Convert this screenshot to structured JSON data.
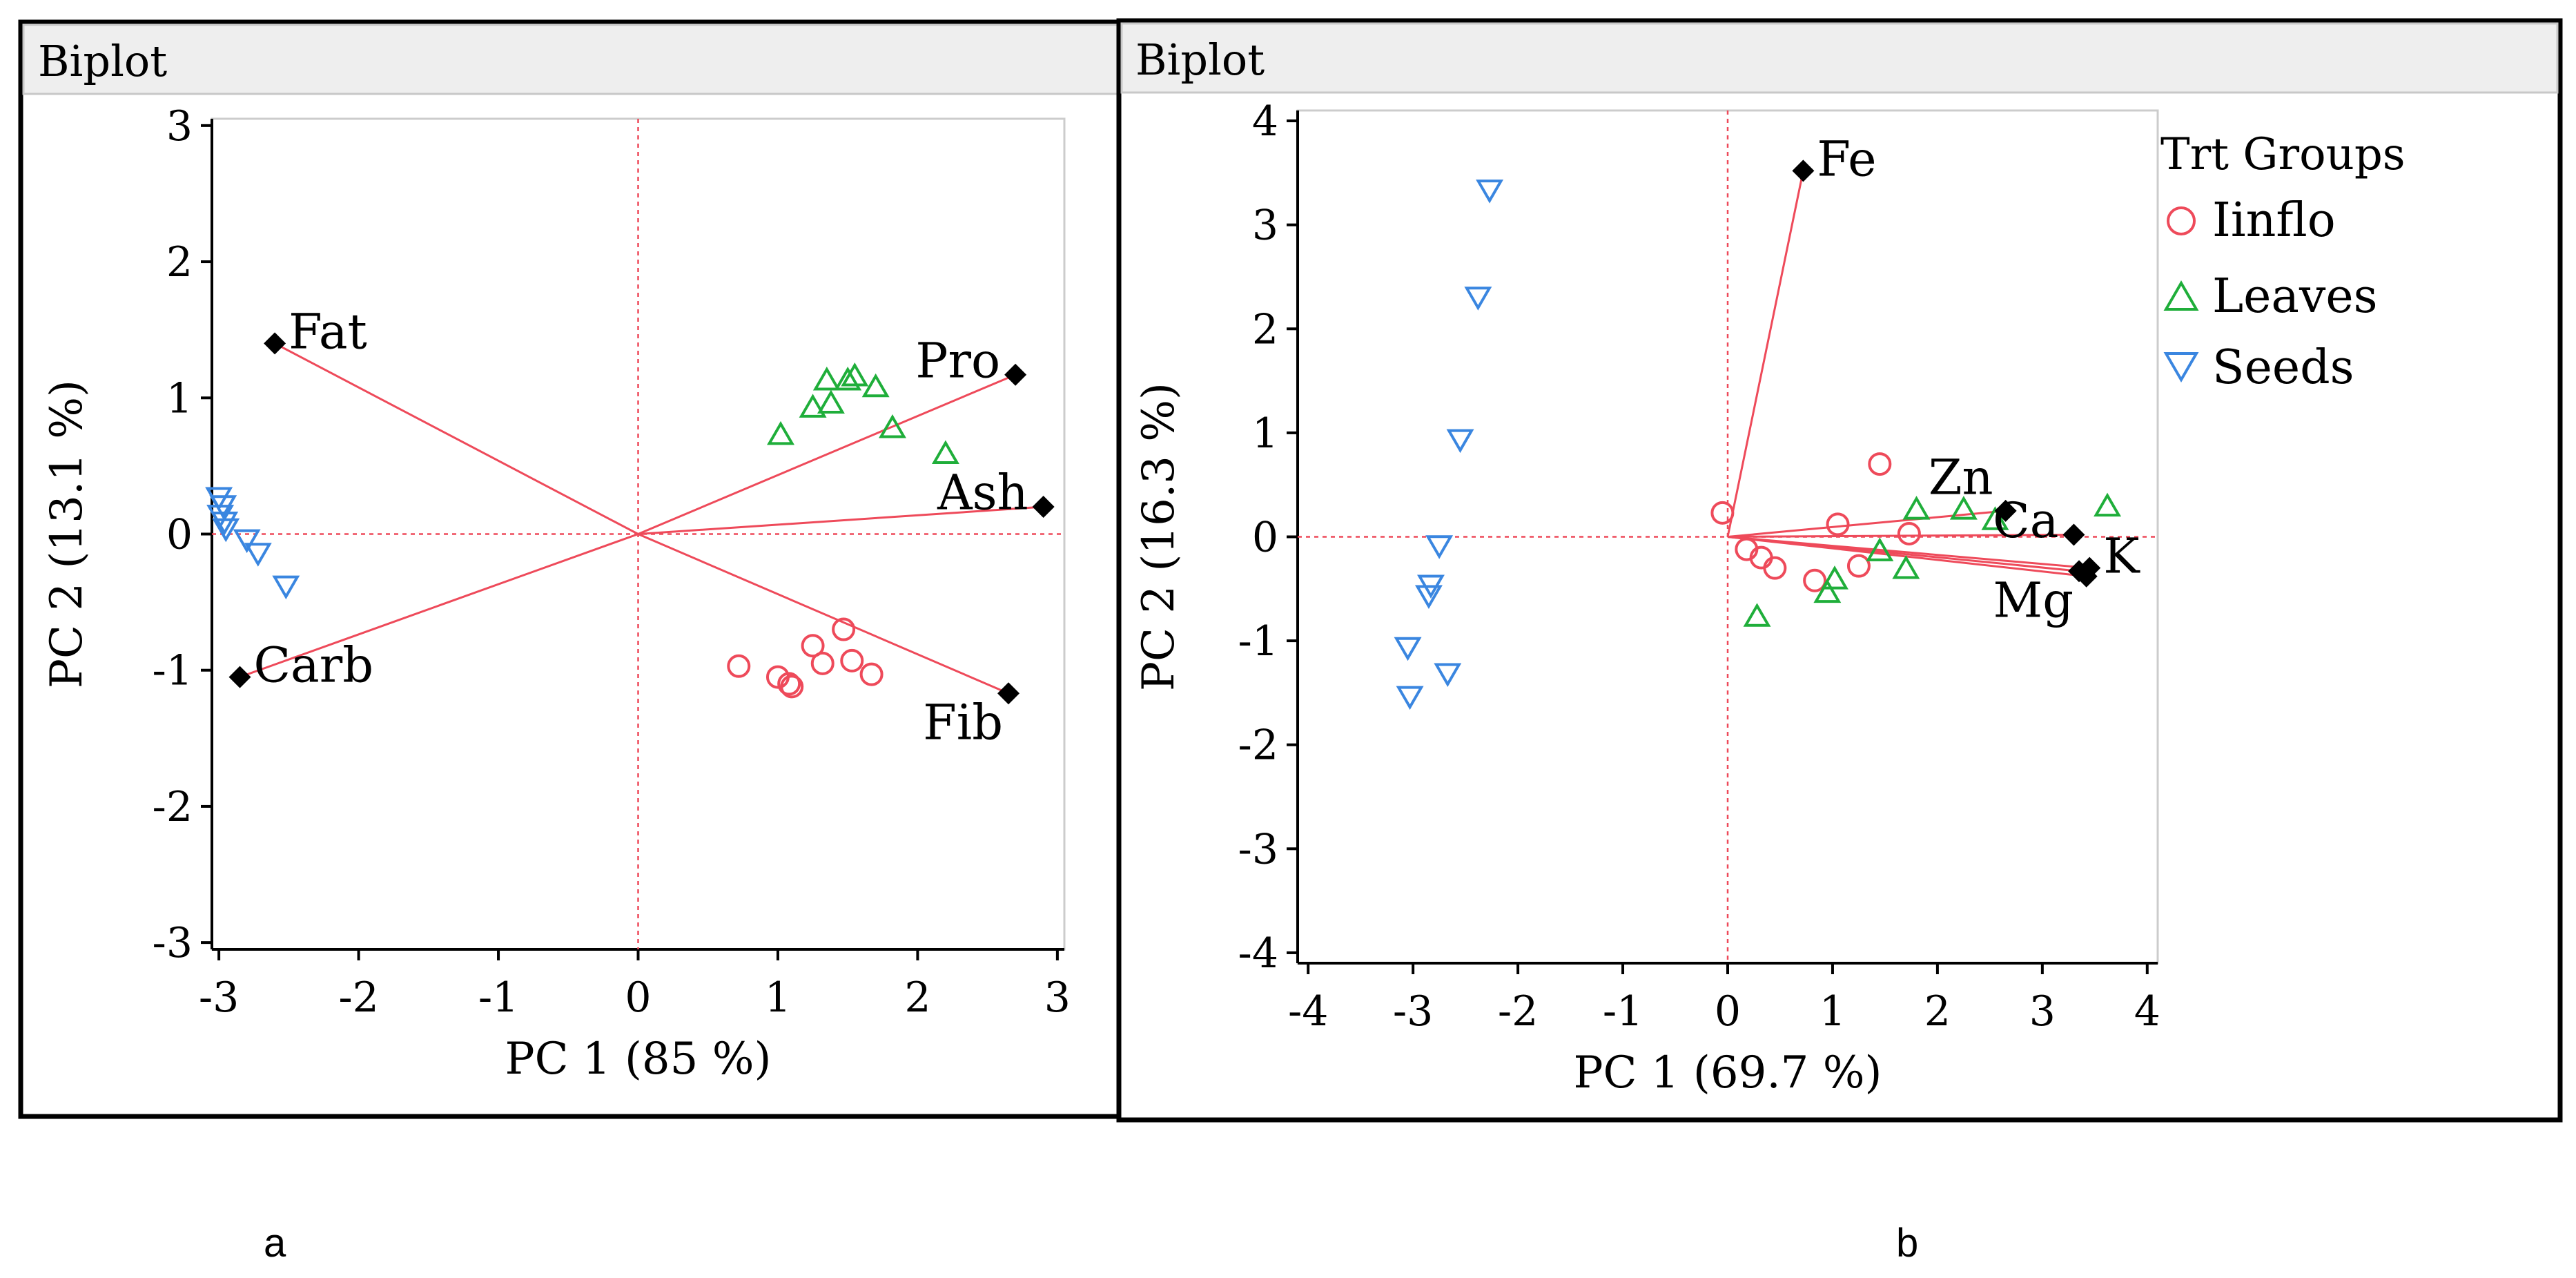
{
  "figure_labels": [
    "a",
    "b"
  ],
  "colors": {
    "loading": "#ee4a5a",
    "origin_line": "#ee4a5a",
    "inflo": "#ee4a5a",
    "leaves": "#1fae3a",
    "seeds": "#3a86e0",
    "axis": "#000000",
    "header_bg": "#eeeeee"
  },
  "chart_data": [
    {
      "type": "scatter",
      "subtype": "biplot",
      "header": "Biplot",
      "xlabel": "PC 1  (85 %)",
      "ylabel": "PC 2  (13.1 %)",
      "xlim": [
        -3.05,
        3.05
      ],
      "ylim": [
        -3.05,
        3.05
      ],
      "xticks": [
        -3,
        -2,
        -1,
        0,
        1,
        2,
        3
      ],
      "yticks": [
        -3,
        -2,
        -1,
        0,
        1,
        2,
        3
      ],
      "xtick_labels": [
        "-3",
        "-2",
        "-1",
        "0",
        "1",
        "2",
        "3"
      ],
      "ytick_labels": [
        "-3",
        "-2",
        "-1",
        "0",
        "1",
        "2",
        "3"
      ],
      "loadings": [
        {
          "label": "Fat",
          "x": -2.6,
          "y": 1.4,
          "label_side": "right"
        },
        {
          "label": "Pro",
          "x": 2.7,
          "y": 1.17,
          "label_side": "left"
        },
        {
          "label": "Ash",
          "x": 2.9,
          "y": 0.2,
          "label_side": "left"
        },
        {
          "label": "Carb",
          "x": -2.85,
          "y": -1.05,
          "label_side": "right"
        },
        {
          "label": "Fib",
          "x": 2.65,
          "y": -1.17,
          "label_side": "below-left"
        }
      ],
      "series": [
        {
          "name": "Iinflo",
          "marker": "circle",
          "x": [
            0.72,
            1.0,
            1.08,
            1.1,
            1.25,
            1.32,
            1.47,
            1.53,
            1.67
          ],
          "y": [
            -0.97,
            -1.05,
            -1.1,
            -1.12,
            -0.82,
            -0.95,
            -0.7,
            -0.93,
            -1.03
          ]
        },
        {
          "name": "Leaves",
          "marker": "triangle-up",
          "x": [
            1.02,
            1.25,
            1.35,
            1.38,
            1.5,
            1.55,
            1.7,
            1.82,
            2.2
          ],
          "y": [
            0.72,
            0.92,
            1.12,
            0.95,
            1.12,
            1.15,
            1.07,
            0.77,
            0.58
          ]
        },
        {
          "name": "Seeds",
          "marker": "triangle-down",
          "x": [
            -3.0,
            -2.97,
            -2.99,
            -2.96,
            -2.95,
            -2.8,
            -2.72,
            -2.52
          ],
          "y": [
            0.28,
            0.22,
            0.15,
            0.1,
            0.05,
            -0.03,
            -0.13,
            -0.37
          ]
        }
      ]
    },
    {
      "type": "scatter",
      "subtype": "biplot",
      "header": "Biplot",
      "xlabel": "PC 1  (69.7 %)",
      "ylabel": "PC 2  (16.3 %)",
      "xlim": [
        -4.1,
        4.1
      ],
      "ylim": [
        -4.1,
        4.1
      ],
      "xticks": [
        -4,
        -3,
        -2,
        -1,
        0,
        1,
        2,
        3,
        4
      ],
      "yticks": [
        -4,
        -3,
        -2,
        -1,
        0,
        1,
        2,
        3,
        4
      ],
      "xtick_labels": [
        "-4",
        "-3",
        "-2",
        "-1",
        "0",
        "1",
        "2",
        "3",
        "4"
      ],
      "ytick_labels": [
        "-4",
        "-3",
        "-2",
        "-1",
        "0",
        "1",
        "2",
        "3",
        "4"
      ],
      "legend": {
        "title": "Trt Groups",
        "placement": "right",
        "entries": [
          "Iinflo",
          "Leaves",
          "Seeds"
        ]
      },
      "loadings": [
        {
          "label": "Fe",
          "x": 0.72,
          "y": 3.52,
          "label_side": "right"
        },
        {
          "label": "Zn",
          "x": 2.65,
          "y": 0.25,
          "label_side": "above-left"
        },
        {
          "label": "Ca",
          "x": 3.3,
          "y": 0.02,
          "label_side": "left"
        },
        {
          "label": "Mg",
          "x": 3.35,
          "y": -0.33,
          "label_side": "below-left"
        },
        {
          "label": "K",
          "x": 3.45,
          "y": -0.3,
          "label_side": "right"
        }
      ],
      "extra_loading_points": [
        {
          "x": 3.42,
          "y": -0.38
        }
      ],
      "series": [
        {
          "name": "Iinflo",
          "marker": "circle",
          "x": [
            -0.05,
            0.18,
            0.32,
            0.45,
            0.83,
            1.05,
            1.25,
            1.45,
            1.73
          ],
          "y": [
            0.23,
            -0.12,
            -0.2,
            -0.3,
            -0.42,
            0.12,
            -0.28,
            0.7,
            0.03
          ]
        },
        {
          "name": "Leaves",
          "marker": "triangle-up",
          "x": [
            0.28,
            0.95,
            1.02,
            1.45,
            1.7,
            1.8,
            2.25,
            2.55,
            3.62
          ],
          "y": [
            -0.78,
            -0.55,
            -0.42,
            -0.15,
            -0.32,
            0.25,
            0.25,
            0.15,
            0.28
          ]
        },
        {
          "name": "Seeds",
          "marker": "triangle-down",
          "x": [
            -2.27,
            -2.38,
            -2.55,
            -2.75,
            -2.83,
            -2.85,
            -3.05,
            -2.67,
            -3.03
          ],
          "y": [
            3.35,
            2.32,
            0.95,
            -0.07,
            -0.45,
            -0.55,
            -1.05,
            -1.3,
            -1.52
          ]
        }
      ]
    }
  ]
}
